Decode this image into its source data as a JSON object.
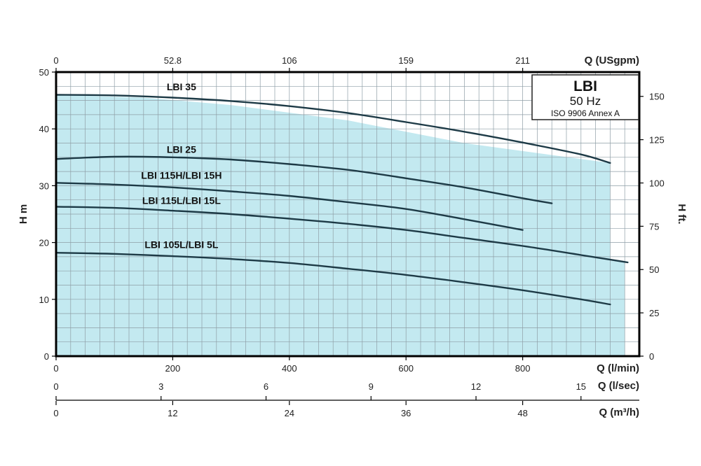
{
  "chart_data": {
    "type": "line",
    "title": "LBI",
    "subtitle": "50 Hz",
    "note": "ISO 9906 Annex A",
    "y_left": {
      "label": "H m",
      "range": [
        0,
        50
      ],
      "ticks": [
        "0",
        "10",
        "20",
        "30",
        "40",
        "50"
      ]
    },
    "y_right": {
      "label": "H ft.",
      "range_ft": [
        0,
        164.04
      ],
      "ticks": [
        "0",
        "25",
        "50",
        "75",
        "100",
        "125",
        "150"
      ]
    },
    "x_primary": {
      "label": "Q (l/min)",
      "range": [
        0,
        1000
      ],
      "ticks": [
        "0",
        "200",
        "400",
        "600",
        "800"
      ]
    },
    "x_top": {
      "label": "Q (USgpm)",
      "ticks": [
        "0",
        "52.8",
        "106",
        "159",
        "211"
      ]
    },
    "x_lsec": {
      "label": "Q (l/sec)",
      "range": [
        0,
        16.6667
      ],
      "ticks": [
        "0",
        "3",
        "6",
        "9",
        "12",
        "15"
      ]
    },
    "x_m3h": {
      "label": "Q (m³/h)",
      "range": [
        0,
        60
      ],
      "ticks": [
        "0",
        "12",
        "24",
        "36",
        "48"
      ]
    },
    "operating_area": {
      "x": [
        0,
        150,
        300,
        500,
        700,
        950,
        950,
        975,
        975,
        0
      ],
      "y": [
        46,
        45.5,
        44.2,
        41.5,
        37.5,
        34,
        16.8,
        16.5,
        0,
        0
      ]
    },
    "series": [
      {
        "name": "LBI 35",
        "x": [
          0,
          100,
          200,
          300,
          400,
          500,
          600,
          700,
          800,
          900,
          950
        ],
        "y": [
          46.0,
          45.9,
          45.5,
          44.9,
          44.0,
          42.8,
          41.2,
          39.5,
          37.6,
          35.5,
          34.0
        ]
      },
      {
        "name": "LBI 25",
        "x": [
          0,
          100,
          200,
          300,
          400,
          500,
          600,
          700,
          800,
          850
        ],
        "y": [
          34.7,
          35.1,
          35.0,
          34.6,
          33.8,
          32.8,
          31.3,
          29.7,
          27.8,
          26.9
        ]
      },
      {
        "name": "LBI 115H/LBI 15H",
        "x": [
          0,
          100,
          200,
          300,
          400,
          500,
          600,
          700,
          800
        ],
        "y": [
          30.5,
          30.2,
          29.7,
          29.0,
          28.2,
          27.1,
          25.9,
          24.1,
          22.2
        ]
      },
      {
        "name": "LBI 115L/LBI 15L",
        "x": [
          0,
          100,
          200,
          300,
          400,
          500,
          600,
          700,
          800,
          900,
          980
        ],
        "y": [
          26.3,
          26.1,
          25.6,
          25.0,
          24.2,
          23.3,
          22.2,
          20.8,
          19.4,
          17.8,
          16.5
        ]
      },
      {
        "name": "LBI 105L/LBI 5L",
        "x": [
          0,
          100,
          200,
          300,
          400,
          500,
          600,
          700,
          800,
          900,
          950
        ],
        "y": [
          18.2,
          18.0,
          17.6,
          17.1,
          16.4,
          15.4,
          14.3,
          13.0,
          11.6,
          10.0,
          9.1
        ]
      }
    ],
    "curve_labels": [
      "LBI 35",
      "LBI 25",
      "LBI 115H/LBI 15H",
      "LBI 115L/LBI 15L",
      "LBI 105L/LBI 5L"
    ],
    "grid": true,
    "legend_position": "top-right",
    "colors": {
      "fill": "#c3e9f0",
      "curve": "#1d3a46",
      "grid": "#8e9ea6",
      "frame": "#000000"
    }
  }
}
